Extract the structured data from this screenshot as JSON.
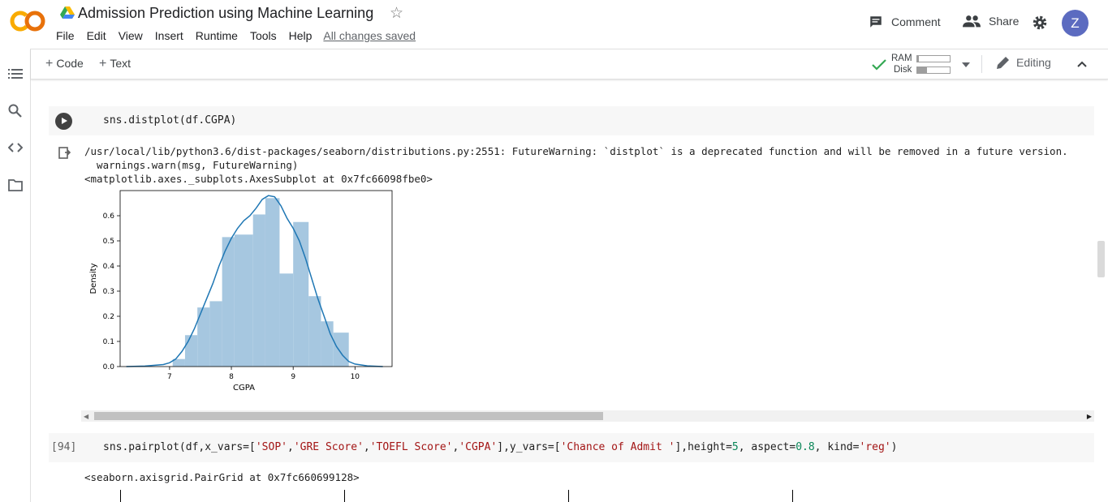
{
  "header": {
    "title": "Admission Prediction using Machine Learning",
    "logo_text": "CO",
    "menu": [
      "File",
      "Edit",
      "View",
      "Insert",
      "Runtime",
      "Tools",
      "Help"
    ],
    "save_status": "All changes saved",
    "comment_label": "Comment",
    "share_label": "Share",
    "avatar_letter": "Z"
  },
  "toolbar": {
    "add_code": "Code",
    "add_text": "Text",
    "ram_label": "RAM",
    "disk_label": "Disk",
    "ram_usage": 0.05,
    "disk_usage": 0.3,
    "editing_label": "Editing"
  },
  "cells": {
    "distplot": {
      "code": "sns.distplot(df.CGPA)",
      "warning_line1": "/usr/local/lib/python3.6/dist-packages/seaborn/distributions.py:2551: FutureWarning: `distplot` is a deprecated function and will be removed in a future version.",
      "warning_line2": "  warnings.warn(msg, FutureWarning)",
      "result": "<matplotlib.axes._subplots.AxesSubplot at 0x7fc66098fbe0>"
    },
    "pairplot": {
      "exec_count": "[94]",
      "code_prefix": "sns.pairplot(df,x_vars=[",
      "str1": "'SOP'",
      "comma1": ",",
      "str2": "'GRE Score'",
      "comma2": ",",
      "str3": "'TOEFL Score'",
      "comma3": ",",
      "str4": "'CGPA'",
      "mid1": "],y_vars=[",
      "str5": "'Chance of Admit '",
      "mid2": "],height=",
      "num1": "5",
      "mid3": ", aspect=",
      "num2": "0.8",
      "mid4": ", kind=",
      "str6": "'reg'",
      "suffix": ")",
      "result": "<seaborn.axisgrid.PairGrid at 0x7fc660699128>"
    }
  },
  "chart_data": {
    "type": "bar",
    "xlabel": "CGPA",
    "ylabel": "Density",
    "xlim": [
      6.2,
      10.6
    ],
    "ylim": [
      0,
      0.7
    ],
    "xticks": [
      7,
      8,
      9,
      10
    ],
    "yticks": [
      0.0,
      0.1,
      0.2,
      0.3,
      0.4,
      0.5,
      0.6
    ],
    "bar_color": "#a6c7e0",
    "line_color": "#1f77b4",
    "bins": [
      {
        "x0": 7.05,
        "x1": 7.25,
        "value": 0.03
      },
      {
        "x0": 7.25,
        "x1": 7.45,
        "value": 0.125
      },
      {
        "x0": 7.45,
        "x1": 7.65,
        "value": 0.235
      },
      {
        "x0": 7.65,
        "x1": 7.85,
        "value": 0.26
      },
      {
        "x0": 7.85,
        "x1": 8.05,
        "value": 0.515
      },
      {
        "x0": 8.05,
        "x1": 8.35,
        "value": 0.525
      },
      {
        "x0": 8.35,
        "x1": 8.55,
        "value": 0.605
      },
      {
        "x0": 8.55,
        "x1": 8.78,
        "value": 0.67
      },
      {
        "x0": 8.78,
        "x1": 9.0,
        "value": 0.37
      },
      {
        "x0": 9.0,
        "x1": 9.25,
        "value": 0.575
      },
      {
        "x0": 9.25,
        "x1": 9.45,
        "value": 0.28
      },
      {
        "x0": 9.45,
        "x1": 9.65,
        "value": 0.18
      },
      {
        "x0": 9.65,
        "x1": 9.9,
        "value": 0.135
      }
    ],
    "kde": [
      [
        6.3,
        0.0
      ],
      [
        6.6,
        0.002
      ],
      [
        6.9,
        0.008
      ],
      [
        7.0,
        0.015
      ],
      [
        7.1,
        0.03
      ],
      [
        7.2,
        0.06
      ],
      [
        7.3,
        0.1
      ],
      [
        7.4,
        0.15
      ],
      [
        7.5,
        0.21
      ],
      [
        7.6,
        0.27
      ],
      [
        7.7,
        0.33
      ],
      [
        7.8,
        0.4
      ],
      [
        7.9,
        0.46
      ],
      [
        8.0,
        0.51
      ],
      [
        8.1,
        0.55
      ],
      [
        8.2,
        0.58
      ],
      [
        8.3,
        0.6
      ],
      [
        8.4,
        0.63
      ],
      [
        8.5,
        0.665
      ],
      [
        8.6,
        0.68
      ],
      [
        8.7,
        0.675
      ],
      [
        8.8,
        0.64
      ],
      [
        8.9,
        0.59
      ],
      [
        9.0,
        0.55
      ],
      [
        9.1,
        0.5
      ],
      [
        9.2,
        0.43
      ],
      [
        9.3,
        0.35
      ],
      [
        9.4,
        0.27
      ],
      [
        9.5,
        0.2
      ],
      [
        9.6,
        0.13
      ],
      [
        9.7,
        0.08
      ],
      [
        9.8,
        0.045
      ],
      [
        9.9,
        0.02
      ],
      [
        10.0,
        0.01
      ],
      [
        10.2,
        0.003
      ],
      [
        10.45,
        0.0
      ]
    ]
  }
}
